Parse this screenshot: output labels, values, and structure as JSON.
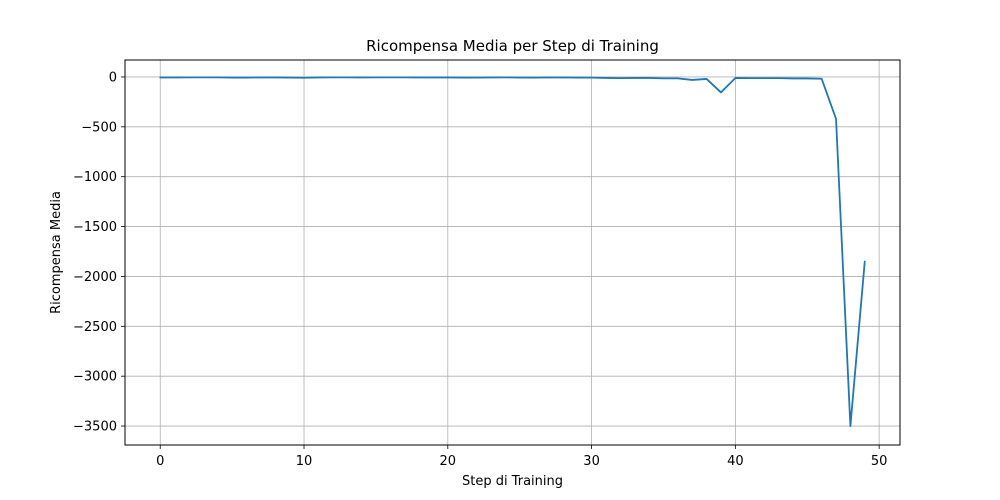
{
  "chart_data": {
    "type": "line",
    "title": "Ricompensa Media per Step di Training",
    "xlabel": "Step di Training",
    "ylabel": "Ricompensa Media",
    "xlim": [
      -2.45,
      51.45
    ],
    "ylim": [
      -3690,
      170
    ],
    "xticks": [
      0,
      10,
      20,
      30,
      40,
      50
    ],
    "yticks": [
      0,
      -500,
      -1000,
      -1500,
      -2000,
      -2500,
      -3000,
      -3500
    ],
    "xtick_labels": [
      "0",
      "10",
      "20",
      "30",
      "40",
      "50"
    ],
    "ytick_labels": [
      "0",
      "−500",
      "−1000",
      "−1500",
      "−2000",
      "−2500",
      "−3000",
      "−3500"
    ],
    "grid": true,
    "series": [
      {
        "color": "#1f77b4",
        "x": [
          0,
          1,
          2,
          3,
          4,
          5,
          6,
          7,
          8,
          9,
          10,
          11,
          12,
          13,
          14,
          15,
          16,
          17,
          18,
          19,
          20,
          21,
          22,
          23,
          24,
          25,
          26,
          27,
          28,
          29,
          30,
          31,
          32,
          33,
          34,
          35,
          36,
          37,
          38,
          39,
          40,
          41,
          42,
          43,
          44,
          45,
          46,
          47,
          48,
          49
        ],
        "y": [
          -5,
          -5,
          -4,
          -4,
          -4,
          -6,
          -6,
          -5,
          -5,
          -6,
          -8,
          -5,
          -4,
          -4,
          -5,
          -4,
          -4,
          -4,
          -5,
          -5,
          -5,
          -6,
          -6,
          -5,
          -4,
          -6,
          -6,
          -5,
          -5,
          -6,
          -7,
          -10,
          -12,
          -10,
          -10,
          -14,
          -14,
          -30,
          -20,
          -155,
          -10,
          -12,
          -12,
          -12,
          -15,
          -15,
          -18,
          -420,
          -3500,
          -1850
        ]
      }
    ]
  }
}
